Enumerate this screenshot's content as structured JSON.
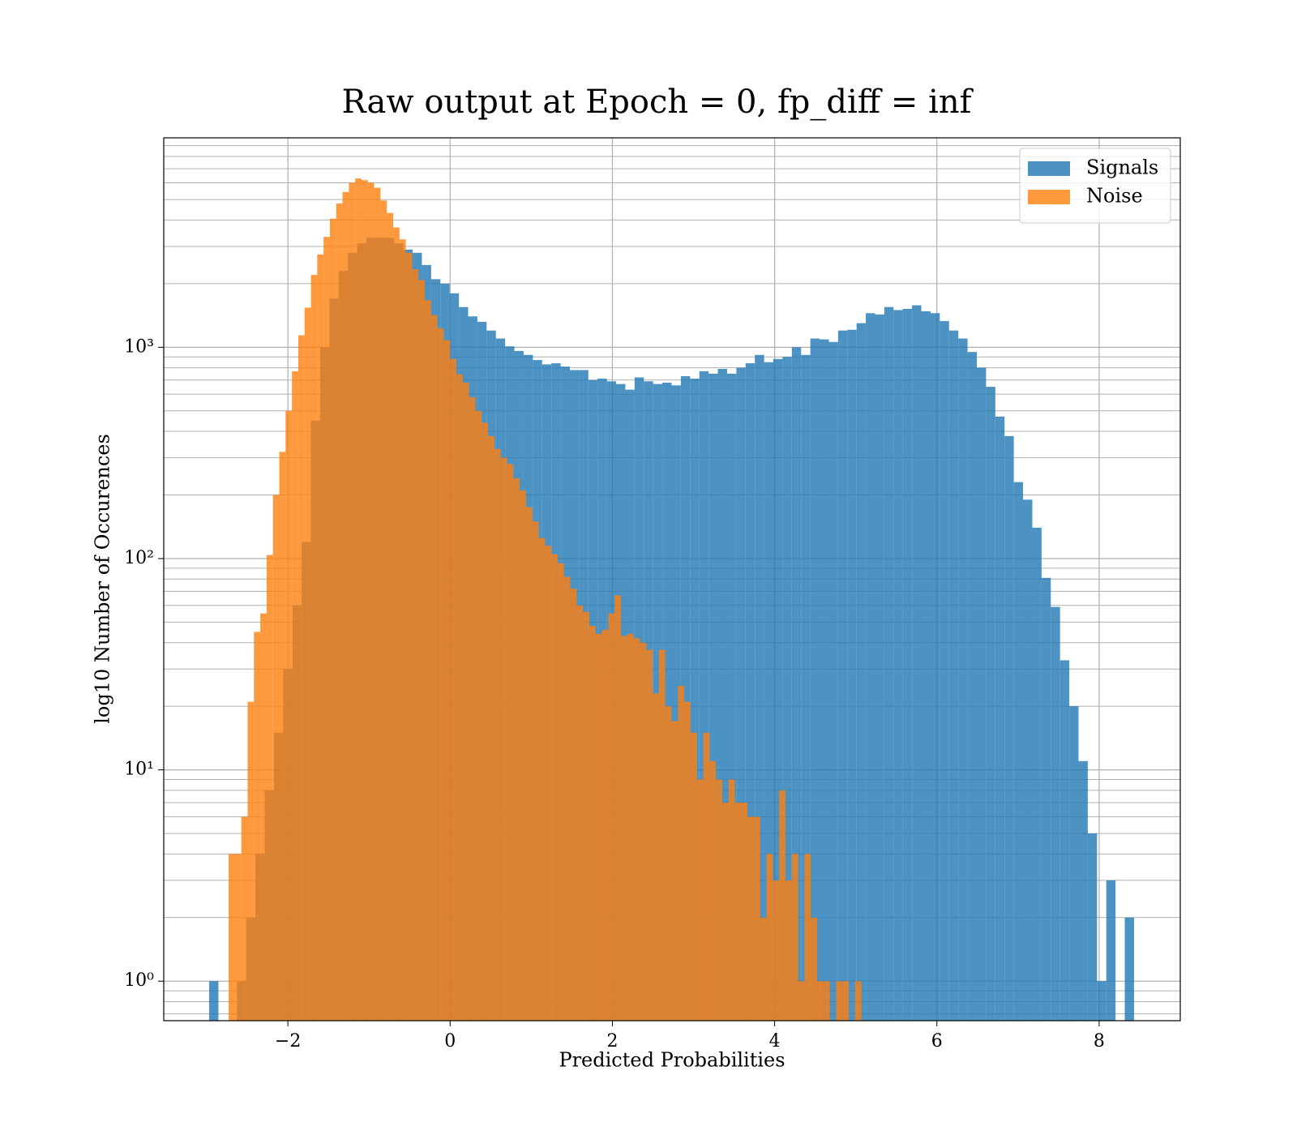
{
  "chart_data": {
    "type": "histogram",
    "title": "Raw output at Epoch = 0, fp_diff = inf",
    "xlabel": "Predicted Probabilities",
    "ylabel": "log10 Number of Occurences",
    "xlim": [
      -3.53,
      9.0
    ],
    "ylim": [
      0.65,
      9800
    ],
    "yscale": "log",
    "grid": true,
    "legend": "upper right",
    "xticks": [
      {
        "value": -2,
        "label": "−2"
      },
      0,
      2,
      4,
      6,
      8
    ],
    "yticks": [
      {
        "value": 1,
        "label": "10⁰"
      },
      {
        "value": 10,
        "label": "10¹"
      },
      {
        "value": 100,
        "label": "10²"
      },
      {
        "value": 1000,
        "label": "10³"
      }
    ],
    "yminorticks": [
      0.7,
      0.8,
      0.9,
      2,
      3,
      4,
      5,
      6,
      7,
      8,
      9,
      20,
      30,
      40,
      50,
      60,
      70,
      80,
      90,
      200,
      300,
      400,
      500,
      600,
      700,
      800,
      900,
      2000,
      3000,
      4000,
      5000,
      6000,
      7000,
      8000,
      9000
    ],
    "series": [
      {
        "name": "Signals",
        "color": "#1f77b4",
        "opacity": 0.8,
        "bins": [
          -2.97,
          -2.856,
          -2.742,
          -2.628,
          -2.514,
          -2.4,
          -2.286,
          -2.172,
          -2.058,
          -1.944,
          -1.83,
          -1.716,
          -1.602,
          -1.488,
          -1.374,
          -1.26,
          -1.146,
          -1.032,
          -0.918,
          -0.804,
          -0.69,
          -0.576,
          -0.462,
          -0.348,
          -0.234,
          -0.12,
          -0.006,
          0.108,
          0.222,
          0.336,
          0.45,
          0.564,
          0.678,
          0.792,
          0.906,
          1.02,
          1.134,
          1.248,
          1.362,
          1.476,
          1.59,
          1.704,
          1.818,
          1.932,
          2.046,
          2.16,
          2.274,
          2.388,
          2.502,
          2.616,
          2.73,
          2.844,
          2.958,
          3.072,
          3.186,
          3.3,
          3.414,
          3.528,
          3.642,
          3.756,
          3.87,
          3.984,
          4.098,
          4.212,
          4.326,
          4.44,
          4.554,
          4.668,
          4.782,
          4.896,
          5.01,
          5.124,
          5.238,
          5.352,
          5.466,
          5.58,
          5.694,
          5.808,
          5.922,
          6.036,
          6.15,
          6.264,
          6.378,
          6.492,
          6.606,
          6.72,
          6.834,
          6.948,
          7.062,
          7.176,
          7.29,
          7.404,
          7.518,
          7.632,
          7.746,
          7.86,
          7.974,
          8.088,
          8.202,
          8.316,
          8.43
        ],
        "values": [
          1,
          0,
          0,
          1,
          2,
          4,
          8,
          15,
          30,
          60,
          120,
          450,
          1000,
          1700,
          2300,
          2800,
          3100,
          3300,
          3300,
          3300,
          3100,
          2900,
          2800,
          2450,
          2100,
          2000,
          1800,
          1550,
          1400,
          1320,
          1200,
          1100,
          1010,
          960,
          920,
          870,
          830,
          840,
          810,
          780,
          780,
          700,
          710,
          690,
          670,
          630,
          720,
          690,
          670,
          680,
          660,
          730,
          710,
          770,
          750,
          790,
          750,
          800,
          840,
          920,
          850,
          880,
          900,
          1000,
          920,
          1100,
          1090,
          1060,
          1200,
          1210,
          1300,
          1450,
          1430,
          1550,
          1500,
          1520,
          1580,
          1480,
          1450,
          1330,
          1200,
          1100,
          950,
          800,
          650,
          470,
          380,
          230,
          190,
          140,
          81,
          59,
          33,
          20,
          11,
          5,
          1,
          3,
          0,
          2
        ]
      },
      {
        "name": "Noise",
        "color": "#ff7f0e",
        "opacity": 0.8,
        "bins": [
          -2.73,
          -2.652,
          -2.574,
          -2.496,
          -2.418,
          -2.34,
          -2.262,
          -2.184,
          -2.106,
          -2.028,
          -1.95,
          -1.872,
          -1.794,
          -1.716,
          -1.638,
          -1.56,
          -1.482,
          -1.404,
          -1.326,
          -1.248,
          -1.17,
          -1.092,
          -1.014,
          -0.936,
          -0.858,
          -0.78,
          -0.702,
          -0.624,
          -0.546,
          -0.468,
          -0.39,
          -0.312,
          -0.234,
          -0.156,
          -0.078,
          0,
          0.078,
          0.156,
          0.234,
          0.312,
          0.39,
          0.468,
          0.546,
          0.624,
          0.702,
          0.78,
          0.858,
          0.936,
          1.014,
          1.092,
          1.17,
          1.248,
          1.326,
          1.404,
          1.482,
          1.56,
          1.638,
          1.716,
          1.794,
          1.872,
          1.95,
          2.028,
          2.106,
          2.184,
          2.262,
          2.34,
          2.418,
          2.496,
          2.574,
          2.652,
          2.73,
          2.808,
          2.886,
          2.964,
          3.042,
          3.12,
          3.198,
          3.276,
          3.354,
          3.432,
          3.51,
          3.588,
          3.666,
          3.744,
          3.822,
          3.9,
          3.978,
          4.056,
          4.134,
          4.212,
          4.29,
          4.368,
          4.446,
          4.524,
          4.602,
          4.68,
          4.758,
          4.836,
          4.914,
          4.992,
          5.07
        ],
        "values": [
          4,
          4,
          6,
          21,
          45,
          55,
          104,
          200,
          320,
          500,
          770,
          1140,
          1540,
          2200,
          2750,
          3330,
          4060,
          4790,
          5430,
          6010,
          6290,
          6180,
          6010,
          5690,
          4950,
          4320,
          3690,
          3240,
          2800,
          2340,
          2080,
          1670,
          1420,
          1230,
          1080,
          880,
          745,
          680,
          580,
          500,
          440,
          380,
          330,
          300,
          280,
          240,
          210,
          175,
          150,
          125,
          115,
          105,
          95,
          82,
          72,
          60,
          56,
          48,
          44,
          46,
          55,
          67,
          43,
          44,
          42,
          40,
          37,
          23,
          37,
          20,
          17,
          25,
          21,
          15,
          9,
          15,
          11,
          9,
          7,
          9,
          7,
          7,
          6,
          6,
          2,
          4,
          3,
          8,
          3,
          4,
          1,
          4,
          2,
          1,
          1,
          0,
          1,
          1,
          0,
          1
        ]
      }
    ]
  }
}
